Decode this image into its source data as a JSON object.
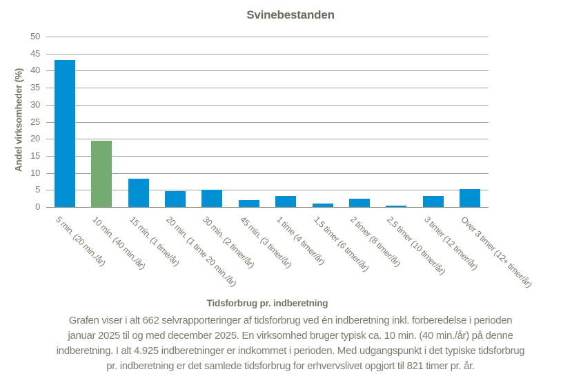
{
  "chart_data": {
    "type": "bar",
    "title": "Svinebestanden",
    "ylabel": "Andel virksomheder  (%)",
    "xlabel": "Tidsforbrug pr. indberetning",
    "ylim": [
      0,
      50
    ],
    "ytick_step": 5,
    "grid": true,
    "legend": "none",
    "categories": [
      "5 min. (20 min./år)",
      "10 min. (40 min./år)",
      "15 min. (1 time/år)",
      "20 min. (1 time 20 min./år)",
      "30 min. (2 timer/år)",
      "45 min. (3 timer/år)",
      "1 time (4 timer/år)",
      "1,5 timer (6 timer/år)",
      "2 timer (8 timer/år)",
      "2,5 timer (10 timer/år)",
      "3 timer (12 timer/år)",
      "Over 3 timer (12+ timer/år)"
    ],
    "values": [
      43.2,
      19.4,
      8.3,
      4.7,
      5.0,
      2.0,
      3.2,
      1.1,
      2.5,
      0.5,
      3.3,
      5.3
    ],
    "highlight_index": 1
  },
  "colors": {
    "bar_default": "#0090d3",
    "bar_highlight": "#74ab71",
    "gridline": "#a5a29a",
    "axis_line": "#8a8779",
    "text": "#7b7b6e",
    "title_text": "#68685c",
    "background": "#ffffff"
  },
  "caption": {
    "lines": [
      "Grafen viser i alt 662 selvrapporteringer af tidsforbrug ved én indberetning inkl. forberedelse i perioden",
      "januar 2025 til og med december 2025. En virksomhed bruger typisk ca. 10 min. (40 min./år) på denne",
      "indberetning. I alt 4.925 indberetninger er indkommet i perioden. Med udgangspunkt i det typiske tidsforbrug",
      "pr. indberetning er det samlede tidsforbrug for erhvervslivet opgjort til 821 timer pr. år."
    ]
  }
}
